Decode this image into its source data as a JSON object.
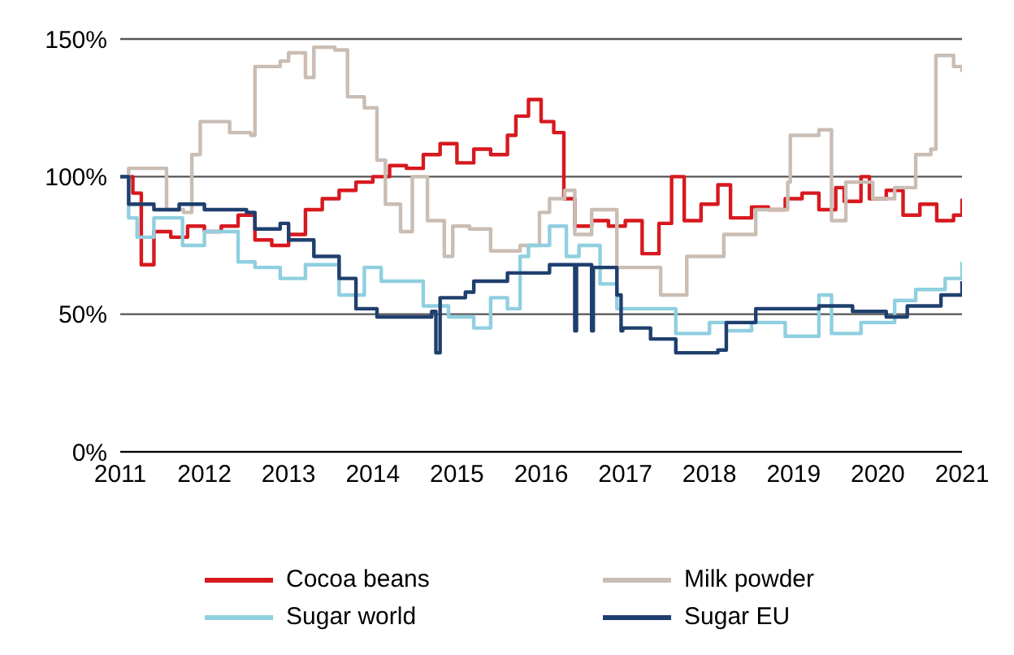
{
  "chart_data": {
    "type": "step",
    "xlim": [
      2011,
      2021
    ],
    "xticks": [
      2011,
      2012,
      2013,
      2014,
      2015,
      2016,
      2017,
      2018,
      2019,
      2020,
      2021
    ],
    "ylim": [
      0,
      150
    ],
    "yticks": [
      {
        "value": 0,
        "label": "0%"
      },
      {
        "value": 50,
        "label": "50%"
      },
      {
        "value": 100,
        "label": "100%"
      },
      {
        "value": 150,
        "label": "150%"
      }
    ],
    "grid": "y",
    "legend": "bottom",
    "marker": "none",
    "line_style": "solid",
    "series": [
      {
        "name": "Cocoa beans",
        "color": "#d7191f",
        "x": [
          2011,
          2011.15,
          2011.25,
          2011.4,
          2011.6,
          2011.8,
          2012,
          2012.2,
          2012.4,
          2012.6,
          2012.8,
          2013,
          2013.2,
          2013.4,
          2013.6,
          2013.8,
          2014,
          2014.2,
          2014.4,
          2014.6,
          2014.8,
          2015,
          2015.2,
          2015.4,
          2015.6,
          2015.7,
          2015.85,
          2016,
          2016.15,
          2016.27,
          2016.4,
          2016.6,
          2016.8,
          2017,
          2017.2,
          2017.4,
          2017.55,
          2017.7,
          2017.9,
          2018.1,
          2018.25,
          2018.5,
          2018.7,
          2018.9,
          2019.1,
          2019.3,
          2019.5,
          2019.6,
          2019.8,
          2019.9,
          2020.1,
          2020.3,
          2020.5,
          2020.7,
          2020.9,
          2021
        ],
        "values": [
          100,
          94,
          68,
          80,
          78,
          82,
          80,
          82,
          86,
          77,
          75,
          79,
          88,
          92,
          95,
          98,
          100,
          104,
          103,
          108,
          112,
          105,
          110,
          108,
          115,
          122,
          128,
          120,
          116,
          92,
          82,
          84,
          82,
          84,
          72,
          83,
          100,
          84,
          90,
          97,
          85,
          89,
          88,
          92,
          94,
          88,
          96,
          91,
          100,
          92,
          95,
          86,
          90,
          84,
          86,
          92
        ]
      },
      {
        "name": "Milk powder",
        "color": "#c9bdb4",
        "x": [
          2011,
          2011.1,
          2011.5,
          2011.55,
          2011.75,
          2011.85,
          2011.95,
          2012.3,
          2012.55,
          2012.6,
          2012.9,
          2013,
          2013.2,
          2013.3,
          2013.55,
          2013.7,
          2013.9,
          2014.05,
          2014.15,
          2014.33,
          2014.47,
          2014.65,
          2014.85,
          2014.95,
          2015.15,
          2015.4,
          2015.75,
          2015.98,
          2016.1,
          2016.28,
          2016.4,
          2016.6,
          2016.9,
          2017.42,
          2017.73,
          2018.17,
          2018.55,
          2018.93,
          2018.96,
          2019.3,
          2019.45,
          2019.62,
          2019.94,
          2020.2,
          2020.45,
          2020.63,
          2020.69,
          2020.9,
          2021
        ],
        "values": [
          100,
          103,
          103,
          88,
          87,
          108,
          120,
          116,
          115,
          140,
          142,
          145,
          136,
          147,
          146,
          129,
          125,
          106,
          90,
          80,
          100,
          84,
          71,
          82,
          81,
          73,
          75,
          87,
          92,
          95,
          79,
          88,
          67,
          57,
          71,
          79,
          88,
          98,
          115,
          117,
          84,
          98,
          92,
          96,
          108,
          110,
          144,
          140,
          138
        ]
      },
      {
        "name": "Sugar world",
        "color": "#8fcfe0",
        "x": [
          2011,
          2011.1,
          2011.2,
          2011.4,
          2011.74,
          2012,
          2012.4,
          2012.6,
          2012.9,
          2013.2,
          2013.6,
          2013.9,
          2014.1,
          2014.6,
          2014.9,
          2015.2,
          2015.4,
          2015.6,
          2015.75,
          2015.85,
          2016.1,
          2016.3,
          2016.45,
          2016.7,
          2016.9,
          2017.3,
          2017.6,
          2018,
          2018.2,
          2018.5,
          2018.9,
          2019.3,
          2019.45,
          2019.8,
          2020.2,
          2020.45,
          2020.8,
          2021
        ],
        "values": [
          100,
          85,
          78,
          85,
          75,
          80,
          69,
          67,
          63,
          68,
          57,
          67,
          62,
          53,
          49,
          45,
          56,
          52,
          71,
          75,
          82,
          71,
          75,
          61,
          52,
          52,
          43,
          47,
          44,
          47,
          42,
          57,
          43,
          47,
          55,
          59,
          63,
          69
        ]
      },
      {
        "name": "Sugar EU",
        "color": "#1f3f6e",
        "x": [
          2011,
          2011.1,
          2011.4,
          2011.7,
          2012,
          2012.5,
          2012.6,
          2012.9,
          2013,
          2013.3,
          2013.6,
          2013.8,
          2014.05,
          2014.7,
          2014.75,
          2014.8,
          2015.1,
          2015.2,
          2015.6,
          2015.9,
          2016.1,
          2016.4,
          2016.42,
          2016.6,
          2016.62,
          2016.7,
          2016.9,
          2016.95,
          2016.97,
          2017.3,
          2017.6,
          2018.1,
          2018.2,
          2018.55,
          2018.9,
          2019.3,
          2019.7,
          2020.1,
          2020.35,
          2020.75,
          2021
        ],
        "values": [
          100,
          90,
          88,
          90,
          88,
          87,
          81,
          83,
          77,
          71,
          63,
          52,
          49,
          51,
          36,
          56,
          58,
          62,
          65,
          65,
          68,
          44,
          68,
          44,
          67,
          67,
          57,
          44,
          45,
          41,
          36,
          37,
          47,
          52,
          52,
          53,
          51,
          49,
          53,
          57,
          62
        ]
      }
    ]
  }
}
